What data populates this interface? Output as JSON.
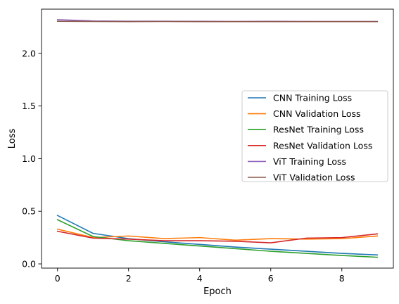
{
  "chart_data": {
    "type": "line",
    "title": "",
    "xlabel": "Epoch",
    "ylabel": "Loss",
    "x": [
      0,
      1,
      2,
      3,
      4,
      5,
      6,
      7,
      8,
      9
    ],
    "xlim": [
      -0.45,
      9.45
    ],
    "ylim": [
      -0.04,
      2.42
    ],
    "xticks": [
      0,
      2,
      4,
      6,
      8
    ],
    "xtick_labels": [
      "0",
      "2",
      "4",
      "6",
      "8"
    ],
    "yticks": [
      0.0,
      0.5,
      1.0,
      1.5,
      2.0
    ],
    "ytick_labels": [
      "0.0",
      "0.5",
      "1.0",
      "1.5",
      "2.0"
    ],
    "grid": false,
    "legend_position": "center-right",
    "series": [
      {
        "name": "CNN Training Loss",
        "color": "#1f77b4",
        "values": [
          0.46,
          0.29,
          0.24,
          0.21,
          0.185,
          0.16,
          0.14,
          0.12,
          0.1,
          0.085
        ]
      },
      {
        "name": "CNN Validation Loss",
        "color": "#ff7f0e",
        "values": [
          0.33,
          0.25,
          0.265,
          0.24,
          0.25,
          0.225,
          0.24,
          0.235,
          0.24,
          0.265
        ]
      },
      {
        "name": "ResNet Training Loss",
        "color": "#2ca02c",
        "values": [
          0.42,
          0.26,
          0.22,
          0.195,
          0.17,
          0.145,
          0.12,
          0.1,
          0.08,
          0.063
        ]
      },
      {
        "name": "ResNet Validation Loss",
        "color": "#d62728",
        "values": [
          0.31,
          0.245,
          0.235,
          0.22,
          0.22,
          0.215,
          0.2,
          0.245,
          0.25,
          0.285
        ]
      },
      {
        "name": "ViT Training Loss",
        "color": "#9467bd",
        "values": [
          2.32,
          2.308,
          2.305,
          2.305,
          2.304,
          2.303,
          2.304,
          2.303,
          2.303,
          2.303
        ]
      },
      {
        "name": "ViT Validation Loss",
        "color": "#8c564b",
        "values": [
          2.305,
          2.303,
          2.302,
          2.303,
          2.302,
          2.302,
          2.302,
          2.302,
          2.302,
          2.302
        ]
      }
    ]
  }
}
